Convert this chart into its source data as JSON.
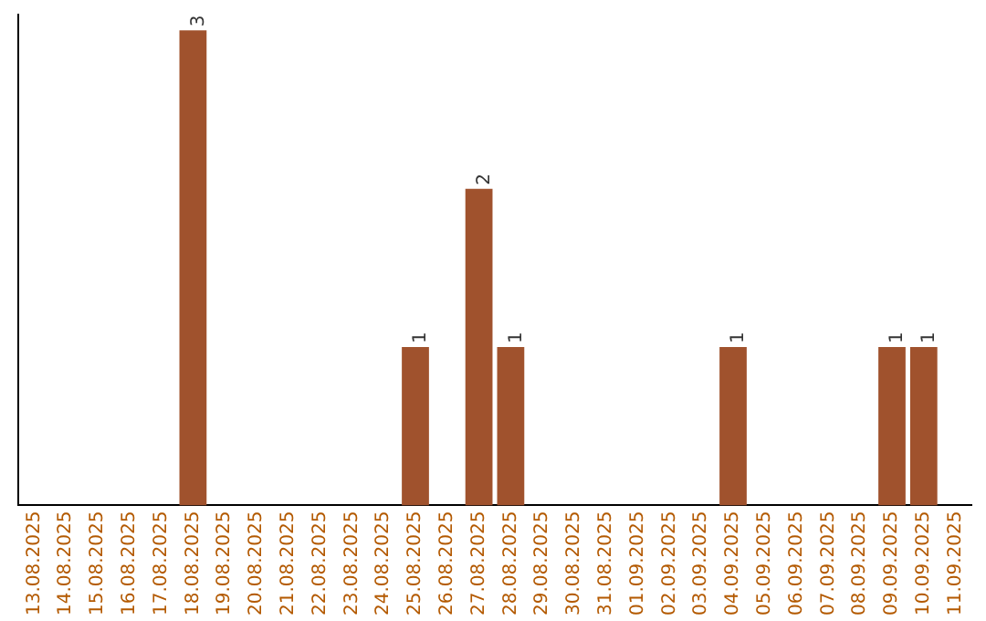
{
  "chart_data": {
    "type": "bar",
    "categories": [
      "13.08.2025",
      "14.08.2025",
      "15.08.2025",
      "16.08.2025",
      "17.08.2025",
      "18.08.2025",
      "19.08.2025",
      "20.08.2025",
      "21.08.2025",
      "22.08.2025",
      "23.08.2025",
      "24.08.2025",
      "25.08.2025",
      "26.08.2025",
      "27.08.2025",
      "28.08.2025",
      "29.08.2025",
      "30.08.2025",
      "31.08.2025",
      "01.09.2025",
      "02.09.2025",
      "03.09.2025",
      "04.09.2025",
      "05.09.2025",
      "06.09.2025",
      "07.09.2025",
      "08.09.2025",
      "09.09.2025",
      "10.09.2025",
      "11.09.2025"
    ],
    "values": [
      0,
      0,
      0,
      0,
      0,
      3,
      0,
      0,
      0,
      0,
      0,
      0,
      1,
      0,
      2,
      1,
      0,
      0,
      0,
      0,
      0,
      0,
      1,
      0,
      0,
      0,
      0,
      1,
      1,
      0
    ],
    "color": "#a0522d",
    "ylim": [
      0,
      3.1
    ],
    "grid": false,
    "legend": false,
    "value_labels": [
      null,
      null,
      null,
      null,
      null,
      "3",
      null,
      null,
      null,
      null,
      null,
      null,
      "1",
      null,
      "2",
      "1",
      null,
      null,
      null,
      null,
      null,
      null,
      "1",
      null,
      null,
      null,
      null,
      "1",
      "1",
      null
    ],
    "tick_labels": "x"
  }
}
